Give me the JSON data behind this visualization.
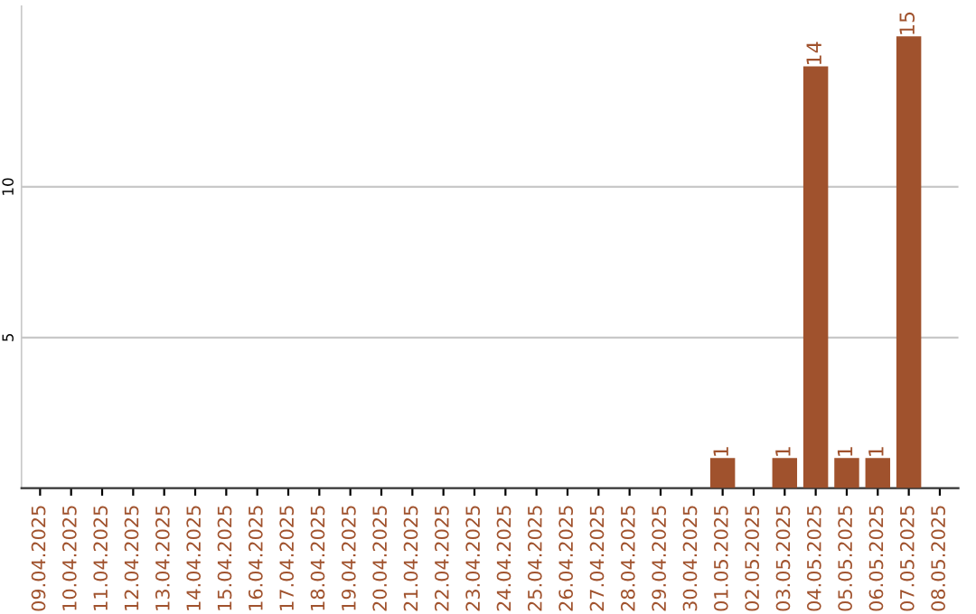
{
  "chart_data": {
    "type": "bar",
    "categories": [
      "09.04.2025",
      "10.04.2025",
      "11.04.2025",
      "12.04.2025",
      "13.04.2025",
      "14.04.2025",
      "15.04.2025",
      "16.04.2025",
      "17.04.2025",
      "18.04.2025",
      "19.04.2025",
      "20.04.2025",
      "21.04.2025",
      "22.04.2025",
      "23.04.2025",
      "24.04.2025",
      "25.04.2025",
      "26.04.2025",
      "27.04.2025",
      "28.04.2025",
      "29.04.2025",
      "30.04.2025",
      "01.05.2025",
      "02.05.2025",
      "03.05.2025",
      "04.05.2025",
      "05.05.2025",
      "06.05.2025",
      "07.05.2025",
      "08.05.2025"
    ],
    "values": [
      0,
      0,
      0,
      0,
      0,
      0,
      0,
      0,
      0,
      0,
      0,
      0,
      0,
      0,
      0,
      0,
      0,
      0,
      0,
      0,
      0,
      0,
      1,
      0,
      1,
      14,
      1,
      1,
      15,
      0
    ],
    "value_labels": [
      null,
      null,
      null,
      null,
      null,
      null,
      null,
      null,
      null,
      null,
      null,
      null,
      null,
      null,
      null,
      null,
      null,
      null,
      null,
      null,
      null,
      null,
      "1",
      null,
      "1",
      "14",
      "1",
      "1",
      "15",
      null
    ],
    "color": "#a0522d",
    "ylim": [
      0,
      16
    ],
    "yticks": [
      5,
      10
    ],
    "grid": "y"
  }
}
